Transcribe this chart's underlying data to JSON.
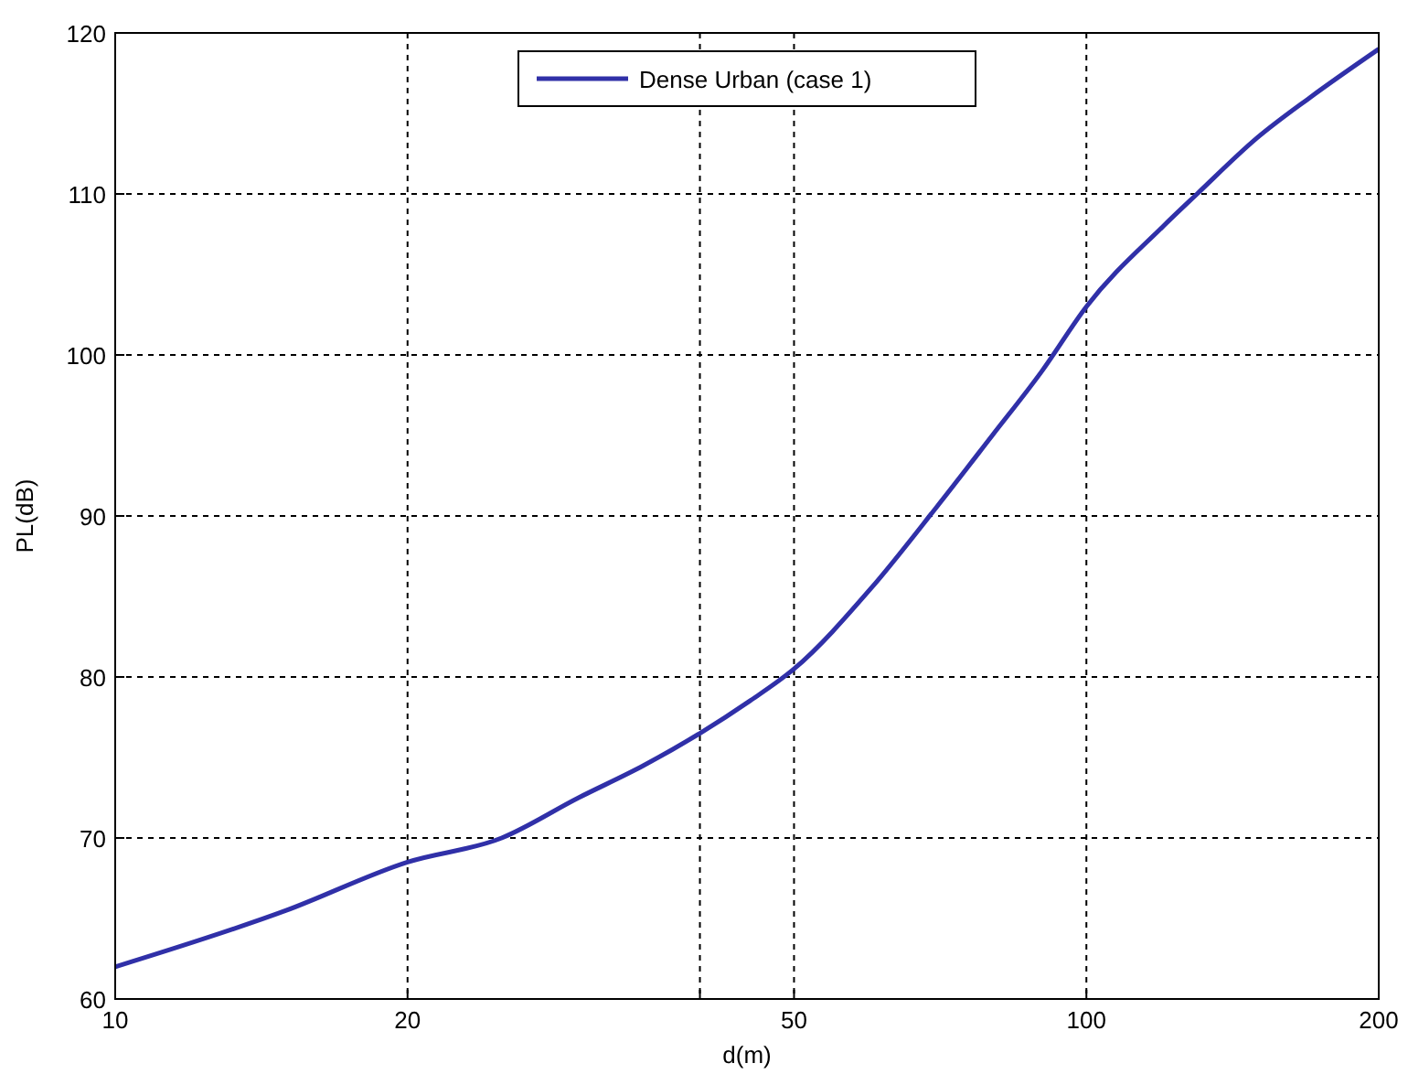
{
  "chart_data": {
    "type": "line",
    "xlabel": "d(m)",
    "ylabel": "PL(dB)",
    "log": "x",
    "xlim": [
      10,
      200
    ],
    "xticks": [
      10,
      20,
      {
        "value": 40,
        "label": null
      },
      50,
      100,
      200
    ],
    "ylim": [
      60,
      120
    ],
    "yticks": [
      60,
      70,
      80,
      90,
      100,
      110,
      120
    ],
    "grid": true,
    "legend": "top",
    "marker": "none",
    "line_style": "solid",
    "series": [
      {
        "name": "Dense Urban (case 1)",
        "color": "#3030a8",
        "x": [
          10,
          15,
          20,
          25,
          30,
          35,
          40,
          45,
          50,
          60,
          70,
          80,
          90,
          100,
          120,
          130,
          150,
          170,
          200
        ],
        "values": [
          62,
          65.5,
          68.5,
          70,
          72.5,
          74.5,
          76.5,
          78.5,
          80.5,
          85.5,
          90.5,
          95,
          99,
          103,
          108,
          110,
          113.5,
          116,
          119
        ]
      }
    ]
  }
}
